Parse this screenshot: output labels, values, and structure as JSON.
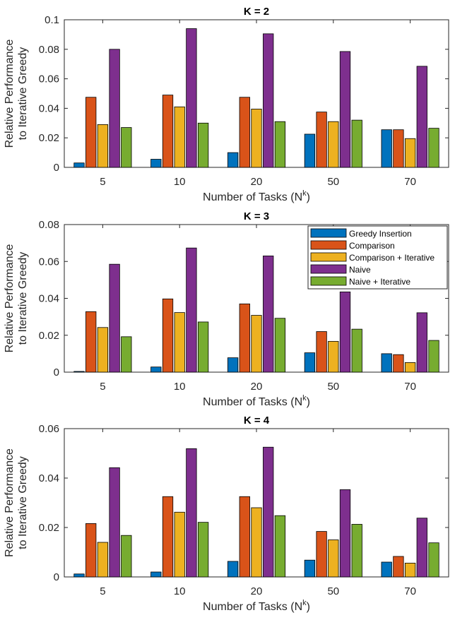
{
  "chart_data": [
    {
      "type": "bar",
      "title": "K = 2",
      "xlabel": "Number of Tasks (N",
      "xlabel_sup": "k",
      "xlabel_close": ")",
      "ylabel_lines": [
        "Relative Performance",
        "to Iterative Greedy"
      ],
      "ylim": [
        0,
        0.1
      ],
      "yticks": [
        "0",
        "0.02",
        "0.04",
        "0.06",
        "0.08",
        "0.1"
      ],
      "categories": [
        "5",
        "10",
        "20",
        "50",
        "70"
      ],
      "series": [
        {
          "name": "Greedy Insertion",
          "values": [
            0.003,
            0.0055,
            0.01,
            0.0225,
            0.0255
          ]
        },
        {
          "name": "Comparison",
          "values": [
            0.0475,
            0.049,
            0.0475,
            0.0375,
            0.0255
          ]
        },
        {
          "name": "Comparison + Iterative",
          "values": [
            0.029,
            0.041,
            0.0395,
            0.031,
            0.0195
          ]
        },
        {
          "name": "Naive",
          "values": [
            0.08,
            0.094,
            0.0905,
            0.0785,
            0.0685
          ]
        },
        {
          "name": "Naive + Iterative",
          "values": [
            0.027,
            0.03,
            0.031,
            0.032,
            0.0265
          ]
        }
      ],
      "legend": false
    },
    {
      "type": "bar",
      "title": "K = 3",
      "xlabel": "Number of Tasks (N",
      "xlabel_sup": "k",
      "xlabel_close": ")",
      "ylabel_lines": [
        "Relative Performance",
        "to Iterative Greedy"
      ],
      "ylim": [
        0,
        0.08
      ],
      "yticks": [
        "0",
        "0.02",
        "0.04",
        "0.06",
        "0.08"
      ],
      "categories": [
        "5",
        "10",
        "20",
        "50",
        "70"
      ],
      "series": [
        {
          "name": "Greedy Insertion",
          "values": [
            0.0004,
            0.0028,
            0.0078,
            0.0105,
            0.01
          ]
        },
        {
          "name": "Comparison",
          "values": [
            0.0328,
            0.0397,
            0.037,
            0.022,
            0.0095
          ]
        },
        {
          "name": "Comparison + Iterative",
          "values": [
            0.0242,
            0.0323,
            0.0308,
            0.0167,
            0.0052
          ]
        },
        {
          "name": "Naive",
          "values": [
            0.0585,
            0.0673,
            0.063,
            0.0435,
            0.0322
          ]
        },
        {
          "name": "Naive + Iterative",
          "values": [
            0.0192,
            0.0272,
            0.0292,
            0.0233,
            0.0172
          ]
        }
      ],
      "legend": true,
      "legend_position": "top-right"
    },
    {
      "type": "bar",
      "title": "K = 4",
      "xlabel": "Number of Tasks (N",
      "xlabel_sup": "k",
      "xlabel_close": ")",
      "ylabel_lines": [
        "Relative Performance",
        "to Iterative Greedy"
      ],
      "ylim": [
        0,
        0.06
      ],
      "yticks": [
        "0",
        "0.02",
        "0.04",
        "0.06"
      ],
      "categories": [
        "5",
        "10",
        "20",
        "50",
        "70"
      ],
      "series": [
        {
          "name": "Greedy Insertion",
          "values": [
            0.0012,
            0.002,
            0.0063,
            0.0068,
            0.006
          ]
        },
        {
          "name": "Comparison",
          "values": [
            0.0216,
            0.0325,
            0.0325,
            0.0184,
            0.0083
          ]
        },
        {
          "name": "Comparison + Iterative",
          "values": [
            0.014,
            0.0262,
            0.028,
            0.015,
            0.0056
          ]
        },
        {
          "name": "Naive",
          "values": [
            0.0442,
            0.0519,
            0.0525,
            0.0353,
            0.0238
          ]
        },
        {
          "name": "Naive + Iterative",
          "values": [
            0.0168,
            0.0221,
            0.0248,
            0.0213,
            0.0138
          ]
        }
      ],
      "legend": false
    }
  ],
  "series_colors": [
    "#0072BD",
    "#D95319",
    "#EDB120",
    "#7E2F8E",
    "#77AC30"
  ]
}
